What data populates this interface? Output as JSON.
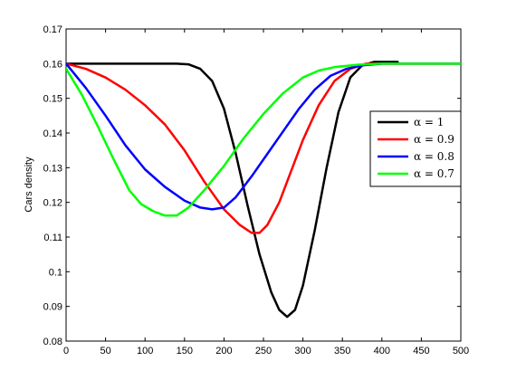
{
  "chart_data": {
    "type": "line",
    "title": "",
    "xlabel": "",
    "ylabel": "Cars density",
    "xlim": [
      0,
      500
    ],
    "ylim": [
      0.08,
      0.17
    ],
    "x_ticks": [
      0,
      50,
      100,
      150,
      200,
      250,
      300,
      350,
      400,
      450,
      500
    ],
    "y_ticks": [
      0.08,
      0.09,
      0.1,
      0.11,
      0.12,
      0.13,
      0.14,
      0.15,
      0.16,
      0.17
    ],
    "y_tick_labels": [
      "0.08",
      "0.09",
      "0.1",
      "0.11",
      "0.12",
      "0.13",
      "0.14",
      "0.15",
      "0.16",
      "0.17"
    ],
    "grid": false,
    "legend_position": "right",
    "series": [
      {
        "name": "α = 1",
        "color": "#000000",
        "points": [
          [
            0,
            0.16
          ],
          [
            50,
            0.16
          ],
          [
            100,
            0.16
          ],
          [
            140,
            0.16
          ],
          [
            155,
            0.1598
          ],
          [
            170,
            0.1585
          ],
          [
            185,
            0.155
          ],
          [
            200,
            0.147
          ],
          [
            215,
            0.134
          ],
          [
            230,
            0.119
          ],
          [
            245,
            0.105
          ],
          [
            260,
            0.094
          ],
          [
            270,
            0.089
          ],
          [
            280,
            0.087
          ],
          [
            290,
            0.089
          ],
          [
            300,
            0.096
          ],
          [
            315,
            0.112
          ],
          [
            330,
            0.13
          ],
          [
            345,
            0.146
          ],
          [
            360,
            0.156
          ],
          [
            375,
            0.1595
          ],
          [
            390,
            0.1605
          ],
          [
            400,
            0.1605
          ],
          [
            420,
            0.1605
          ]
        ]
      },
      {
        "name": "α = 0.9",
        "color": "#ff0000",
        "points": [
          [
            0,
            0.16
          ],
          [
            25,
            0.1585
          ],
          [
            50,
            0.156
          ],
          [
            75,
            0.1525
          ],
          [
            100,
            0.148
          ],
          [
            125,
            0.1425
          ],
          [
            150,
            0.135
          ],
          [
            175,
            0.126
          ],
          [
            200,
            0.118
          ],
          [
            220,
            0.1135
          ],
          [
            235,
            0.1112
          ],
          [
            245,
            0.1112
          ],
          [
            255,
            0.1135
          ],
          [
            270,
            0.12
          ],
          [
            285,
            0.129
          ],
          [
            300,
            0.138
          ],
          [
            320,
            0.148
          ],
          [
            340,
            0.155
          ],
          [
            360,
            0.1585
          ],
          [
            380,
            0.16
          ],
          [
            400,
            0.16
          ],
          [
            500,
            0.16
          ]
        ]
      },
      {
        "name": "α = 0.8",
        "color": "#0000ff",
        "points": [
          [
            0,
            0.16
          ],
          [
            25,
            0.153
          ],
          [
            50,
            0.145
          ],
          [
            75,
            0.1365
          ],
          [
            100,
            0.1295
          ],
          [
            125,
            0.1245
          ],
          [
            150,
            0.1205
          ],
          [
            170,
            0.1185
          ],
          [
            185,
            0.118
          ],
          [
            200,
            0.1185
          ],
          [
            215,
            0.1215
          ],
          [
            235,
            0.1275
          ],
          [
            255,
            0.134
          ],
          [
            275,
            0.1405
          ],
          [
            295,
            0.147
          ],
          [
            315,
            0.1525
          ],
          [
            335,
            0.1565
          ],
          [
            355,
            0.1585
          ],
          [
            375,
            0.1595
          ],
          [
            400,
            0.16
          ],
          [
            500,
            0.16
          ]
        ]
      },
      {
        "name": "α = 0.7",
        "color": "#00ff00",
        "points": [
          [
            0,
            0.1585
          ],
          [
            20,
            0.151
          ],
          [
            40,
            0.142
          ],
          [
            60,
            0.1325
          ],
          [
            80,
            0.1235
          ],
          [
            95,
            0.1195
          ],
          [
            110,
            0.1175
          ],
          [
            125,
            0.1162
          ],
          [
            140,
            0.1162
          ],
          [
            155,
            0.1185
          ],
          [
            175,
            0.1235
          ],
          [
            200,
            0.1305
          ],
          [
            225,
            0.1385
          ],
          [
            250,
            0.1455
          ],
          [
            275,
            0.1515
          ],
          [
            300,
            0.156
          ],
          [
            320,
            0.158
          ],
          [
            340,
            0.159
          ],
          [
            370,
            0.1597
          ],
          [
            400,
            0.16
          ],
          [
            500,
            0.16
          ]
        ]
      }
    ]
  }
}
